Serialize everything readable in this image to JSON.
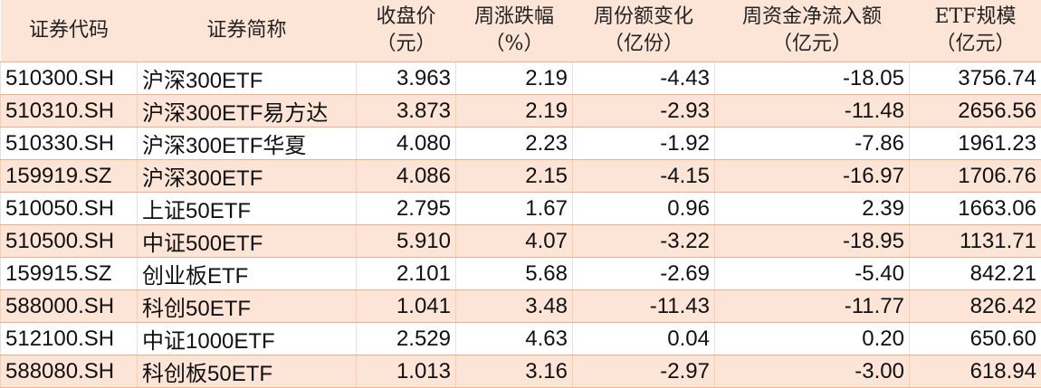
{
  "headers": [
    [
      "证券代码",
      ""
    ],
    [
      "证券简称",
      ""
    ],
    [
      "收盘价",
      "（元）"
    ],
    [
      "周涨跌幅",
      "（%）"
    ],
    [
      "周份额变化",
      "（亿份）"
    ],
    [
      "周资金净流入额",
      "（亿元）"
    ],
    [
      "ETF规模",
      "（亿元）"
    ]
  ],
  "rows": [
    [
      "510300.SH",
      "沪深300ETF",
      "3.963",
      "2.19",
      "-4.43",
      "-18.05",
      "3756.74"
    ],
    [
      "510310.SH",
      "沪深300ETF易方达",
      "3.873",
      "2.19",
      "-2.93",
      "-11.48",
      "2656.56"
    ],
    [
      "510330.SH",
      "沪深300ETF华夏",
      "4.080",
      "2.23",
      "-1.92",
      "-7.86",
      "1961.23"
    ],
    [
      "159919.SZ",
      "沪深300ETF",
      "4.086",
      "2.15",
      "-4.15",
      "-16.97",
      "1706.76"
    ],
    [
      "510050.SH",
      "上证50ETF",
      "2.795",
      "1.67",
      "0.96",
      "2.39",
      "1663.06"
    ],
    [
      "510500.SH",
      "中证500ETF",
      "5.910",
      "4.07",
      "-3.22",
      "-18.95",
      "1131.71"
    ],
    [
      "159915.SZ",
      "创业板ETF",
      "2.101",
      "5.68",
      "-2.69",
      "-5.40",
      "842.21"
    ],
    [
      "588000.SH",
      "科创50ETF",
      "1.041",
      "3.48",
      "-11.43",
      "-11.77",
      "826.42"
    ],
    [
      "512100.SH",
      "中证1000ETF",
      "2.529",
      "4.63",
      "0.04",
      "0.20",
      "650.60"
    ],
    [
      "588080.SH",
      "科创板50ETF",
      "1.013",
      "3.16",
      "-2.97",
      "-3.00",
      "618.94"
    ]
  ],
  "colors": {
    "header_bg": "#FCE4D6",
    "alt_row_bg": "#FCE4D6",
    "border": "#F4B084"
  }
}
